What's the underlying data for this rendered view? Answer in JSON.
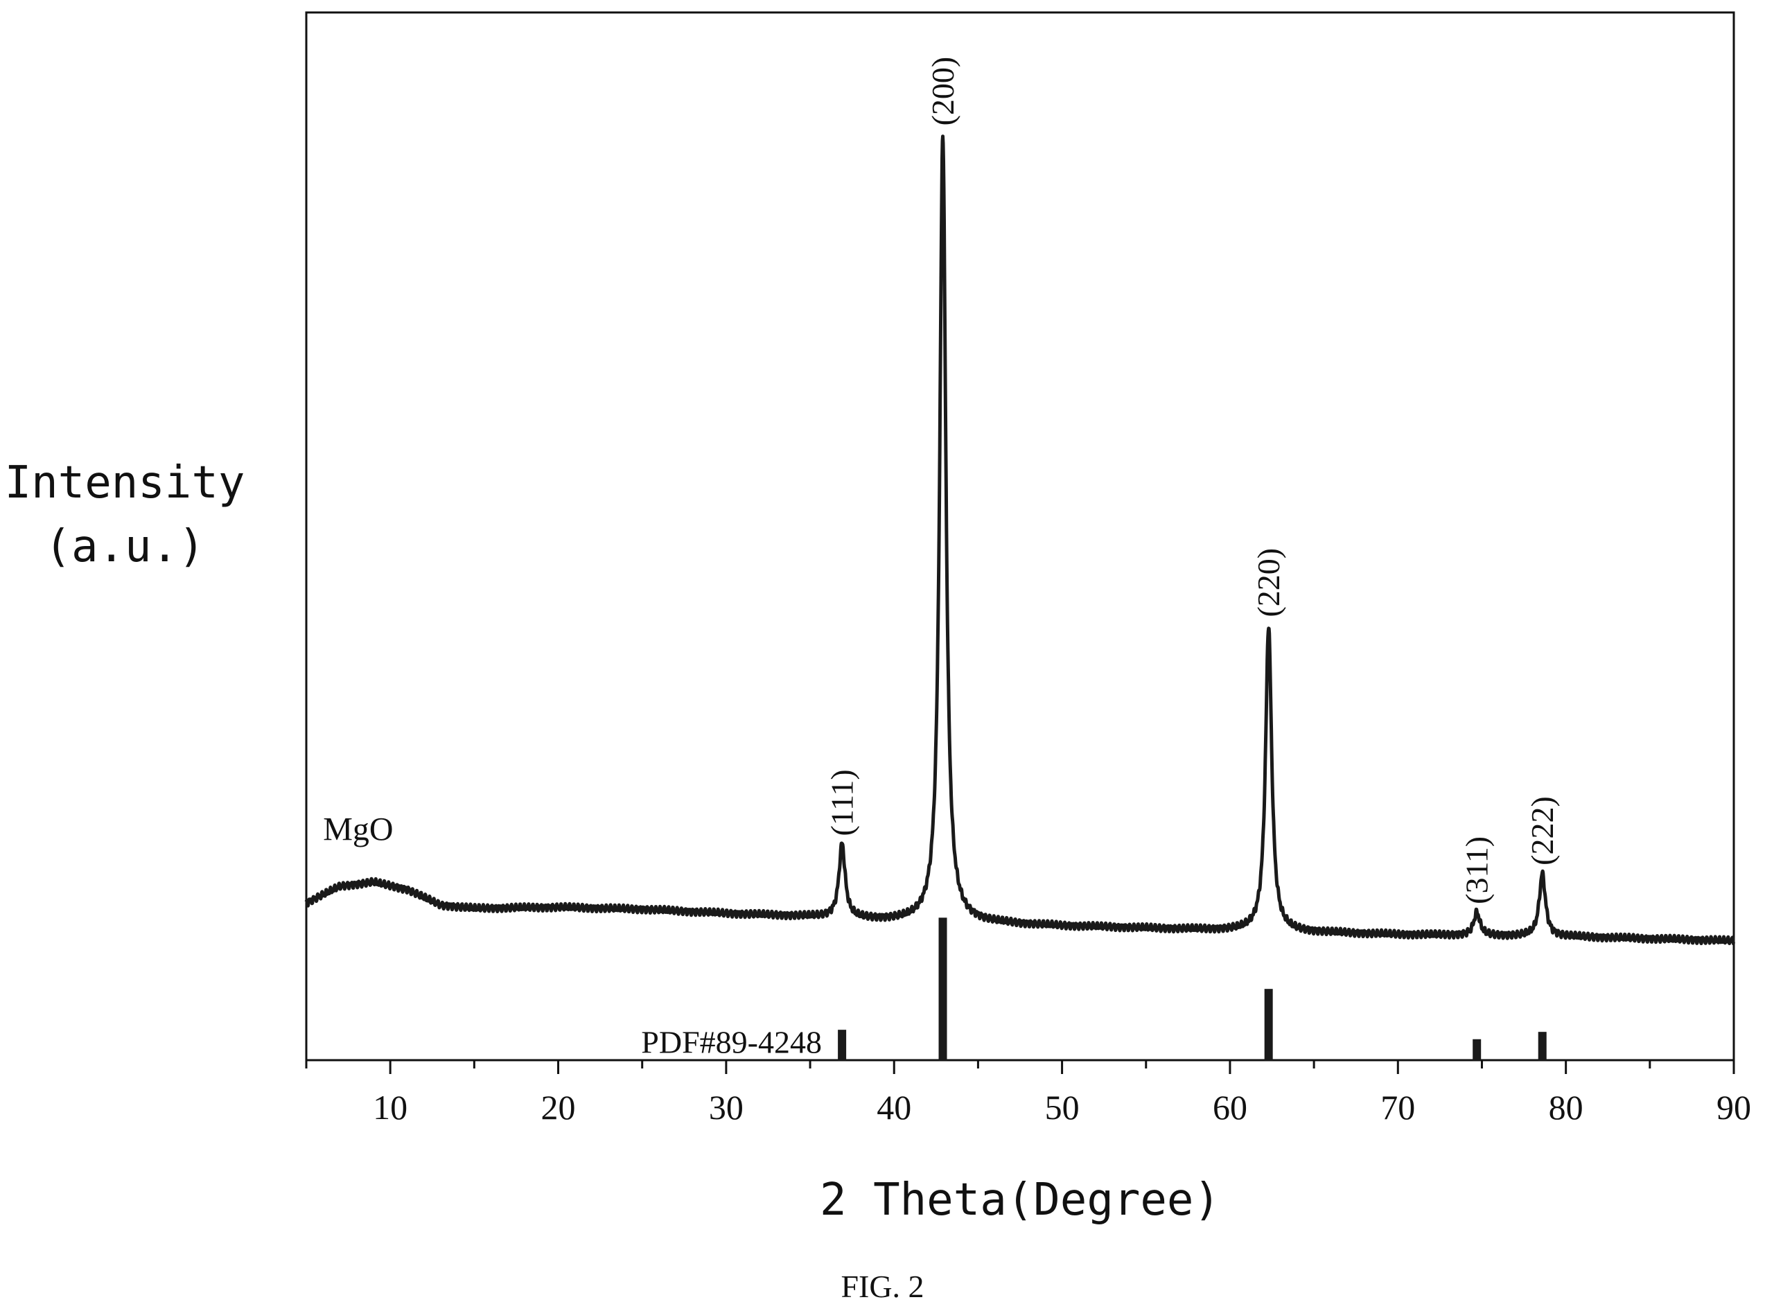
{
  "chart_data": {
    "type": "line",
    "xlabel": "2 Theta(Degree)",
    "ylabel_line1": "Intensity",
    "ylabel_line2": "(a.u.)",
    "xlim": [
      5,
      90
    ],
    "ylim": [
      0,
      100
    ],
    "x_major_ticks": [
      10,
      20,
      30,
      40,
      50,
      60,
      70,
      80,
      90
    ],
    "x_minor_step": 5,
    "y_ticks_shown": false,
    "grid": false,
    "series": [
      {
        "name": "MgO",
        "color": "#1a1a1a",
        "baseline": [
          [
            5,
            15.0
          ],
          [
            7,
            16.6
          ],
          [
            9,
            17.0
          ],
          [
            11,
            16.3
          ],
          [
            13,
            14.8
          ],
          [
            15,
            14.5
          ],
          [
            20,
            14.6
          ],
          [
            25,
            14.4
          ],
          [
            30,
            14.0
          ],
          [
            35,
            13.7
          ],
          [
            40,
            13.3
          ],
          [
            45,
            13.1
          ],
          [
            50,
            12.8
          ],
          [
            55,
            12.6
          ],
          [
            60,
            12.4
          ],
          [
            65,
            12.2
          ],
          [
            70,
            12.0
          ],
          [
            75,
            11.9
          ],
          [
            80,
            11.8
          ],
          [
            85,
            11.6
          ],
          [
            90,
            11.4
          ]
        ],
        "peaks": [
          {
            "two_theta": 36.9,
            "intensity": 20.6,
            "label": "(111)"
          },
          {
            "two_theta": 42.9,
            "intensity": 88.4,
            "label": "(200)"
          },
          {
            "two_theta": 62.3,
            "intensity": 41.5,
            "label": "(220)"
          },
          {
            "two_theta": 74.7,
            "intensity": 14.1,
            "label": "(311)"
          },
          {
            "two_theta": 78.6,
            "intensity": 17.8,
            "label": "(222)"
          }
        ]
      },
      {
        "name": "PDF#89-4248",
        "color": "#1a1a1a",
        "sticks": [
          {
            "two_theta": 36.9,
            "intensity": 2.9
          },
          {
            "two_theta": 42.9,
            "intensity": 13.6
          },
          {
            "two_theta": 62.3,
            "intensity": 6.8
          },
          {
            "two_theta": 74.7,
            "intensity": 2.0
          },
          {
            "two_theta": 78.6,
            "intensity": 2.7
          }
        ]
      }
    ]
  },
  "caption": "FIG. 2",
  "colors": {
    "line": "#1a1a1a",
    "axis": "#111111",
    "background": "#ffffff"
  }
}
